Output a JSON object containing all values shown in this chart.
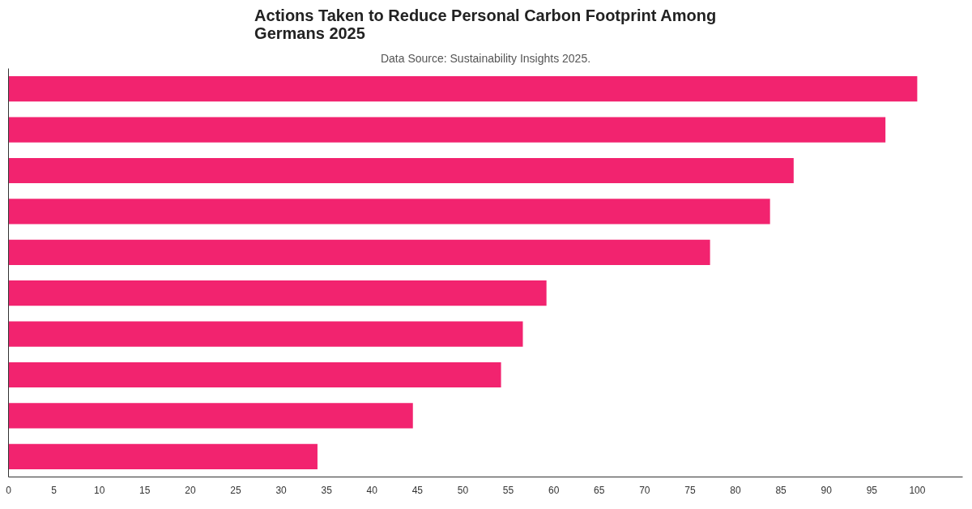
{
  "chart_data": {
    "type": "bar",
    "orientation": "horizontal",
    "title": "Actions Taken to Reduce Personal Carbon Footprint Among Germans 2025",
    "subtitle": "Data Source: Sustainability Insights 2025.",
    "categories": [
      null,
      null,
      null,
      null,
      null,
      null,
      null,
      null,
      null,
      null
    ],
    "values": [
      100,
      96.5,
      86.4,
      83.8,
      77.2,
      59.2,
      56.6,
      54.2,
      44.5,
      34.0
    ],
    "color": "#f2236f",
    "xlim": [
      0,
      105
    ],
    "xticks": [
      0,
      5,
      10,
      15,
      20,
      25,
      30,
      35,
      40,
      45,
      50,
      55,
      60,
      65,
      70,
      75,
      80,
      85,
      90,
      95,
      100
    ],
    "grid": false
  }
}
